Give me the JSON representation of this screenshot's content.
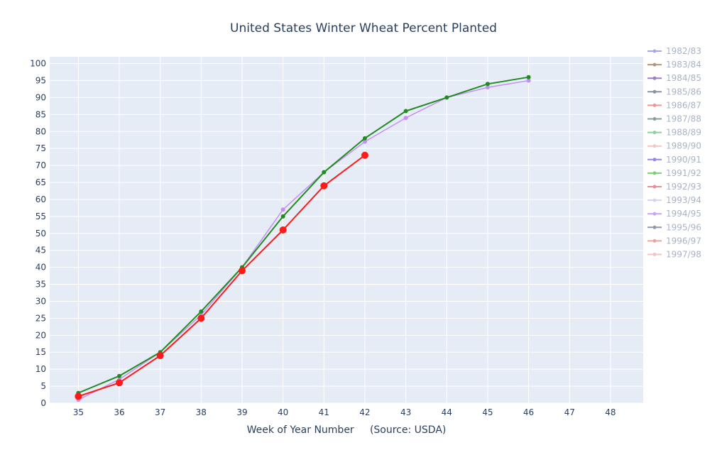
{
  "chart_data": {
    "type": "line",
    "title": "United States Winter Wheat Percent Planted",
    "xlabel": "Week of Year Number     (Source: USDA)",
    "ylabel": "",
    "xlim": [
      34.3,
      48.8
    ],
    "ylim": [
      0,
      102
    ],
    "x_ticks": [
      35,
      36,
      37,
      38,
      39,
      40,
      41,
      42,
      43,
      44,
      45,
      46,
      47,
      48
    ],
    "y_ticks": [
      0,
      5,
      10,
      15,
      20,
      25,
      30,
      35,
      40,
      45,
      50,
      55,
      60,
      65,
      70,
      75,
      80,
      85,
      90,
      95,
      100
    ],
    "grid": true,
    "legend_position": "right",
    "background": "#e5ecf6",
    "legend": [
      {
        "name": "1982/83",
        "color": "#a9a6f0"
      },
      {
        "name": "1983/84",
        "color": "#b5967d"
      },
      {
        "name": "1984/85",
        "color": "#9b7fc4"
      },
      {
        "name": "1985/86",
        "color": "#8a94a6"
      },
      {
        "name": "1986/87",
        "color": "#e89a9a"
      },
      {
        "name": "1987/88",
        "color": "#80a693"
      },
      {
        "name": "1988/89",
        "color": "#8fd19a"
      },
      {
        "name": "1989/90",
        "color": "#f5c6c6"
      },
      {
        "name": "1990/91",
        "color": "#9b86ec"
      },
      {
        "name": "1991/92",
        "color": "#7bd17b"
      },
      {
        "name": "1992/93",
        "color": "#ee8d8d"
      },
      {
        "name": "1993/94",
        "color": "#d4d6ef"
      },
      {
        "name": "1994/95",
        "color": "#c9a6f0"
      },
      {
        "name": "1995/96",
        "color": "#8f98ac"
      },
      {
        "name": "1996/97",
        "color": "#efa3a3"
      },
      {
        "name": "1997/98",
        "color": "#f4c4c4"
      }
    ],
    "series": [
      {
        "name": "1994/95",
        "color": "#c58ff5",
        "width": 1.5,
        "marker": 3,
        "x": [
          35,
          36,
          37,
          38,
          39,
          40,
          41,
          42,
          43,
          44,
          45,
          46
        ],
        "y": [
          1,
          7,
          15,
          26,
          40,
          57,
          68,
          77,
          84,
          90,
          93,
          95
        ]
      },
      {
        "name": "1995/96",
        "color": "#228b22",
        "width": 2,
        "marker": 3,
        "x": [
          35,
          36,
          37,
          38,
          39,
          40,
          41,
          42,
          43,
          44,
          45,
          46
        ],
        "y": [
          3,
          8,
          15,
          27,
          40,
          55,
          68,
          78,
          86,
          90,
          94,
          96
        ]
      },
      {
        "name": "1996/97",
        "color": "#ff1a1a",
        "width": 2,
        "marker": 5,
        "x": [
          35,
          36,
          37,
          38,
          39,
          40,
          41,
          42
        ],
        "y": [
          2,
          6,
          14,
          25,
          39,
          51,
          64,
          73
        ]
      }
    ]
  }
}
